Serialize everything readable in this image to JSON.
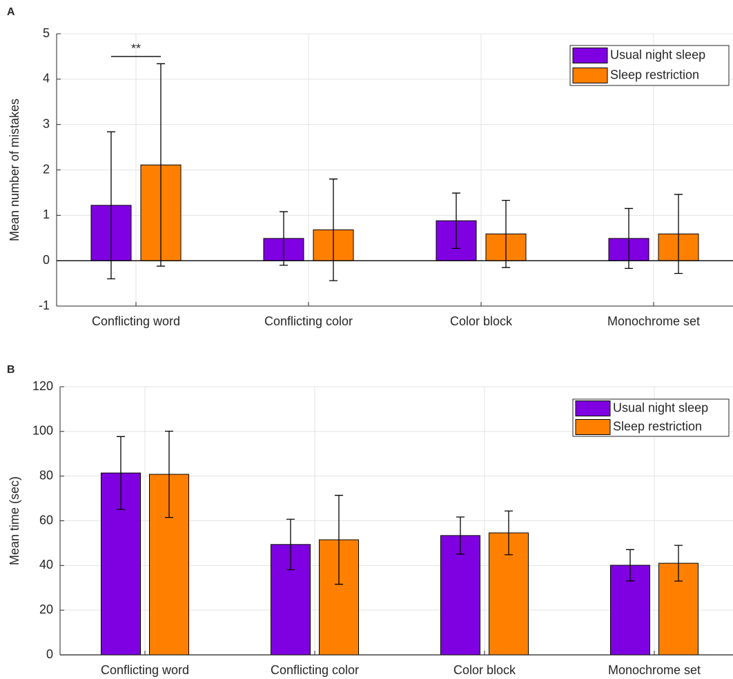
{
  "chart_data": [
    {
      "type": "bar",
      "panel_label": "A",
      "ylabel": "Mean number of mistakes",
      "categories": [
        "Conflicting word",
        "Conflicting color",
        "Color block",
        "Monochrome set"
      ],
      "series": [
        {
          "name": "Usual night sleep",
          "color": "#7f00e0",
          "values": [
            1.22,
            0.49,
            0.88,
            0.49
          ],
          "errors": [
            1.62,
            0.59,
            0.61,
            0.66
          ]
        },
        {
          "name": "Sleep restriction",
          "color": "#ff8000",
          "values": [
            2.11,
            0.68,
            0.59,
            0.59
          ],
          "errors": [
            2.23,
            1.12,
            0.74,
            0.87
          ]
        }
      ],
      "ylim": [
        -1,
        5
      ],
      "yticks": [
        -1,
        0,
        1,
        2,
        3,
        4,
        5
      ],
      "grid": true,
      "legend": "upper right",
      "annotations": [
        {
          "text": "**",
          "y": 4.5,
          "category": 0
        }
      ]
    },
    {
      "type": "bar",
      "panel_label": "B",
      "ylabel": "Mean time (sec)",
      "categories": [
        "Conflicting word",
        "Conflicting color",
        "Color block",
        "Monochrome set"
      ],
      "series": [
        {
          "name": "Usual night sleep",
          "color": "#7f00e0",
          "values": [
            81.4,
            49.4,
            53.4,
            40.1
          ],
          "errors": [
            16.3,
            11.3,
            8.3,
            7.0
          ]
        },
        {
          "name": "Sleep restriction",
          "color": "#ff8000",
          "values": [
            80.8,
            51.5,
            54.6,
            41.0
          ],
          "errors": [
            19.3,
            19.9,
            9.8,
            8.0
          ]
        }
      ],
      "ylim": [
        0,
        120
      ],
      "yticks": [
        0,
        20,
        40,
        60,
        80,
        100,
        120
      ],
      "grid": true,
      "legend": "upper right"
    }
  ]
}
